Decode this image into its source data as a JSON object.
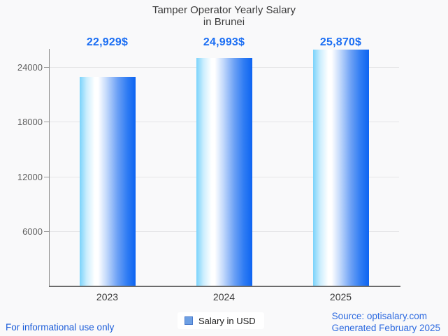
{
  "title_lines": [
    "Tamper Operator Yearly Salary",
    "in Brunei"
  ],
  "chart_data": {
    "type": "bar",
    "title": "Tamper Operator Yearly Salary in Brunei",
    "categories": [
      "2023",
      "2024",
      "2025"
    ],
    "values": [
      22929,
      24993,
      25870
    ],
    "value_labels": [
      "22,929$",
      "24,993$",
      "25,870$"
    ],
    "series": [
      {
        "name": "Salary in USD",
        "values": [
          22929,
          24993,
          25870
        ]
      }
    ],
    "xlabel": "",
    "ylabel": "",
    "yticks": [
      6000,
      12000,
      18000,
      24000
    ],
    "ylim": [
      0,
      25800
    ],
    "grid": true,
    "legend_position": "bottom"
  },
  "legend": {
    "label": "Salary in USD",
    "marker_color": "#6d9fe3",
    "marker_border_color": "#4779cc"
  },
  "footer": {
    "left": "For informational use only",
    "source": "Source: optisalary.com",
    "generated": "Generated February 2025"
  },
  "colors": {
    "background": "#f9f9fa",
    "title_text": "#3d3d3d",
    "value_label_blue": "#1b6ef3",
    "footer_blue": "#1c5dd9",
    "bar_gradient_left": "#7ad3fb",
    "bar_gradient_mid": "#ffffff",
    "bar_gradient_right": "#0d64f2",
    "axis_gray": "#8a8a8a",
    "grid_gray": "#e5e5e7"
  }
}
